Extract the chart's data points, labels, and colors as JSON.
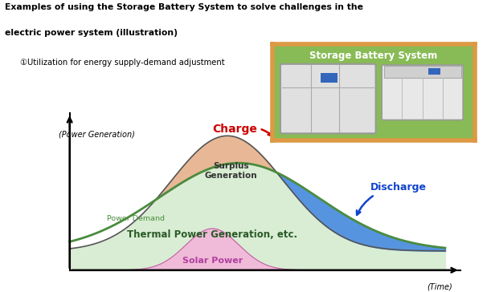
{
  "title_line1": "Examples of using the Storage Battery System to solve challenges in the",
  "title_line2": "electric power system (illustration)",
  "subtitle": "①Utilization for energy supply-demand adjustment",
  "ylabel": "(Power Generation)",
  "xlabel": "(Time)",
  "label_thermal": "Thermal Power Generation, etc.",
  "label_solar": "Solar Power",
  "label_surplus": "Surplus\nGeneration",
  "label_power_demand": "Power Demand",
  "label_charge": "Charge",
  "label_discharge": "Discharge",
  "label_battery": "Storage Battery System",
  "color_thermal_fill": "#d8edd3",
  "color_thermal_line": "#4a8c3f",
  "color_solar_fill": "#f0bbd8",
  "color_solar_line": "#c060a0",
  "color_surplus_fill": "#e8b896",
  "color_discharge_fill": "#4488dd",
  "color_charge_text": "#cc0000",
  "color_discharge_text": "#1144cc",
  "color_battery_bg": "#88bb55",
  "color_battery_border": "#dd9944",
  "background": "#ffffff"
}
